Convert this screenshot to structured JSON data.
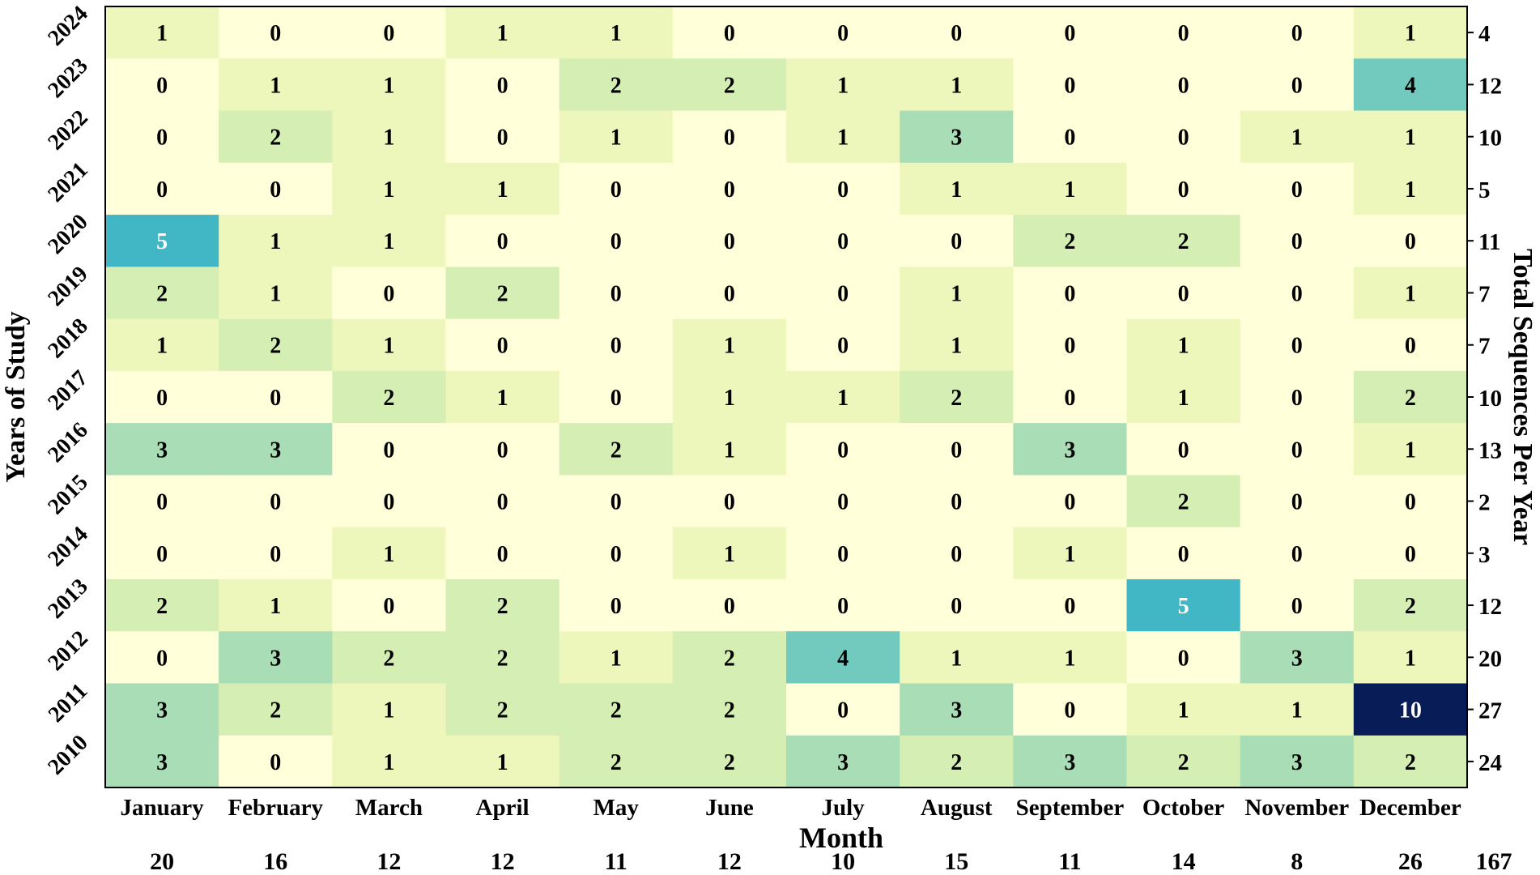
{
  "chart_data": {
    "type": "heatmap",
    "xlabel": "Month",
    "ylabel": "Years of Study",
    "right_label": "Total Sequences Per Year",
    "months": [
      "January",
      "February",
      "March",
      "April",
      "May",
      "June",
      "July",
      "August",
      "September",
      "October",
      "November",
      "December"
    ],
    "years": [
      "2024",
      "2023",
      "2022",
      "2021",
      "2020",
      "2019",
      "2018",
      "2017",
      "2016",
      "2015",
      "2014",
      "2013",
      "2012",
      "2011",
      "2010"
    ],
    "values": [
      [
        1,
        0,
        0,
        1,
        1,
        0,
        0,
        0,
        0,
        0,
        0,
        1
      ],
      [
        0,
        1,
        1,
        0,
        2,
        2,
        1,
        1,
        0,
        0,
        0,
        4
      ],
      [
        0,
        2,
        1,
        0,
        1,
        0,
        1,
        3,
        0,
        0,
        1,
        1
      ],
      [
        0,
        0,
        1,
        1,
        0,
        0,
        0,
        1,
        1,
        0,
        0,
        1
      ],
      [
        5,
        1,
        1,
        0,
        0,
        0,
        0,
        0,
        2,
        2,
        0,
        0
      ],
      [
        2,
        1,
        0,
        2,
        0,
        0,
        0,
        1,
        0,
        0,
        0,
        1
      ],
      [
        1,
        2,
        1,
        0,
        0,
        1,
        0,
        1,
        0,
        1,
        0,
        0
      ],
      [
        0,
        0,
        2,
        1,
        0,
        1,
        1,
        2,
        0,
        1,
        0,
        2
      ],
      [
        3,
        3,
        0,
        0,
        2,
        1,
        0,
        0,
        3,
        0,
        0,
        1
      ],
      [
        0,
        0,
        0,
        0,
        0,
        0,
        0,
        0,
        0,
        2,
        0,
        0
      ],
      [
        0,
        0,
        1,
        0,
        0,
        1,
        0,
        0,
        1,
        0,
        0,
        0
      ],
      [
        2,
        1,
        0,
        2,
        0,
        0,
        0,
        0,
        0,
        5,
        0,
        2
      ],
      [
        0,
        3,
        2,
        2,
        1,
        2,
        4,
        1,
        1,
        0,
        3,
        1
      ],
      [
        3,
        2,
        1,
        2,
        2,
        2,
        0,
        3,
        0,
        1,
        1,
        10
      ],
      [
        3,
        0,
        1,
        1,
        2,
        2,
        3,
        2,
        3,
        2,
        3,
        2
      ]
    ],
    "row_totals": [
      4,
      12,
      10,
      5,
      11,
      7,
      7,
      10,
      13,
      2,
      3,
      12,
      20,
      27,
      24
    ],
    "column_totals": [
      20,
      16,
      12,
      12,
      11,
      12,
      10,
      15,
      11,
      14,
      8,
      26
    ],
    "grand_total": 167,
    "colormap": {
      "0": "#ffffd9",
      "1": "#eef7bb",
      "2": "#d5eeb3",
      "3": "#a9ddb6",
      "4": "#72c9bd",
      "5": "#41b6c4",
      "10": "#081d58"
    },
    "border_color": "#000000"
  }
}
